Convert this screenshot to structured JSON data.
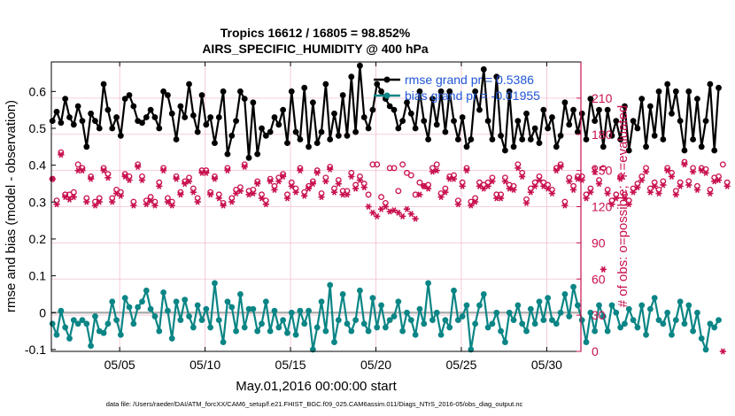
{
  "chart_data": {
    "type": "line",
    "title": [
      "Tropics 16612 / 16805 = 98.852%",
      "AIRS_SPECIFIC_HUMIDITY @ 400 hPa"
    ],
    "xlabel": "May.01,2016 00:00:00 start",
    "ylabel_left": "rmse and bias (model - observation)",
    "ylabel_right": "# of obs: o=possible; ∗=evaluated",
    "footnote": "data file: /Users/raeder/DAI/ATM_forcXX/CAM6_setup/f.e21.FHIST_BGC.f09_025.CAM6assim.011/Diags_NTrS_2016-05/obs_diag_output.nc",
    "xlim": [
      1,
      32
    ],
    "ylim_left": [
      -0.105,
      0.68
    ],
    "ylim_right": [
      0,
      240
    ],
    "x_ticks": [
      5,
      10,
      15,
      20,
      25,
      30
    ],
    "x_tick_labels": [
      "05/05",
      "05/10",
      "05/15",
      "05/20",
      "05/25",
      "05/30"
    ],
    "y_ticks_left": [
      -0.1,
      0,
      0.1,
      0.2,
      0.3,
      0.4,
      0.5,
      0.6
    ],
    "y_tick_labels_left": [
      "-0.1",
      "0",
      "0.1",
      "0.2",
      "0.3",
      "0.4",
      "0.5",
      "0.6"
    ],
    "y_ticks_right": [
      0,
      30,
      60,
      90,
      120,
      150,
      180,
      210
    ],
    "y_tick_labels_right": [
      "0",
      "30",
      "60",
      "90",
      "120",
      "150",
      "180",
      "210"
    ],
    "legend": {
      "placement": "top-right",
      "entries": [
        "rmse grand pr = 0.5386",
        "bias grand pr = -0.01955"
      ]
    },
    "colors": {
      "rmse": "#000000",
      "bias": "#0b8585",
      "obs": "#c8104e",
      "zero_line": "#b0b0b0",
      "legend_text": "#1f56d6",
      "grid": "#f2bfd0"
    },
    "x_step_days": 0.25,
    "series": [
      {
        "name": "rmse",
        "axis": "left",
        "values": [
          0.52,
          0.545,
          0.515,
          0.58,
          0.53,
          0.51,
          0.56,
          0.52,
          0.45,
          0.54,
          0.52,
          0.5,
          0.62,
          0.55,
          0.5,
          0.53,
          0.48,
          0.58,
          0.59,
          0.56,
          0.52,
          0.515,
          0.53,
          0.55,
          0.53,
          0.5,
          0.6,
          0.59,
          0.54,
          0.47,
          0.56,
          0.53,
          0.62,
          0.535,
          0.49,
          0.59,
          0.51,
          0.53,
          0.46,
          0.53,
          0.6,
          0.43,
          0.48,
          0.52,
          0.6,
          0.58,
          0.42,
          0.57,
          0.43,
          0.5,
          0.48,
          0.49,
          0.53,
          0.51,
          0.55,
          0.46,
          0.6,
          0.49,
          0.47,
          0.61,
          0.45,
          0.57,
          0.46,
          0.49,
          0.62,
          0.47,
          0.54,
          0.48,
          0.59,
          0.48,
          0.64,
          0.49,
          0.67,
          0.53,
          0.5,
          0.55,
          0.62,
          0.6,
          0.58,
          0.56,
          0.55,
          0.5,
          0.52,
          0.57,
          0.54,
          0.5,
          0.6,
          0.52,
          0.47,
          0.58,
          0.51,
          0.6,
          0.49,
          0.6,
          0.52,
          0.47,
          0.53,
          0.45,
          0.47,
          0.6,
          0.55,
          0.66,
          0.52,
          0.47,
          0.64,
          0.48,
          0.44,
          0.6,
          0.45,
          0.52,
          0.47,
          0.54,
          0.47,
          0.5,
          0.46,
          0.55,
          0.5,
          0.53,
          0.45,
          0.48,
          0.57,
          0.51,
          0.55,
          0.49,
          0.54,
          0.47,
          0.58,
          0.52,
          0.55,
          0.45,
          0.55,
          0.48,
          0.52,
          0.47,
          0.56,
          0.44,
          0.52,
          0.5,
          0.58,
          0.45,
          0.56,
          0.48,
          0.6,
          0.47,
          0.62,
          0.54,
          0.6,
          0.52,
          0.44,
          0.6,
          0.47,
          0.58,
          0.45,
          0.52,
          0.62,
          0.44,
          0.61
        ]
      },
      {
        "name": "bias",
        "axis": "left",
        "values": [
          -0.03,
          -0.06,
          0.005,
          -0.04,
          -0.07,
          -0.02,
          -0.03,
          -0.02,
          -0.03,
          -0.09,
          -0.01,
          -0.05,
          -0.055,
          -0.03,
          0.03,
          -0.02,
          -0.06,
          0.04,
          0.015,
          -0.03,
          0.015,
          0.03,
          0.06,
          0.01,
          -0.01,
          -0.05,
          0.055,
          0.005,
          -0.07,
          0.03,
          -0.02,
          0.035,
          -0.01,
          -0.04,
          0.02,
          -0.02,
          0.01,
          -0.04,
          0.08,
          -0.02,
          -0.08,
          0.03,
          0.015,
          -0.05,
          0.05,
          -0.04,
          0.01,
          0.01,
          -0.05,
          -0.03,
          0.03,
          -0.05,
          0.005,
          -0.04,
          -0.02,
          -0.055,
          0.0,
          -0.06,
          0.005,
          -0.03,
          0.005,
          -0.1,
          -0.04,
          0.03,
          -0.05,
          0.075,
          -0.08,
          -0.02,
          0.05,
          -0.03,
          -0.05,
          -0.02,
          0.06,
          -0.03,
          -0.05,
          0.04,
          -0.04,
          0.02,
          -0.04,
          -0.02,
          -0.01,
          0.03,
          -0.05,
          0.0,
          -0.02,
          -0.06,
          0.01,
          -0.03,
          0.08,
          -0.02,
          0.0,
          -0.06,
          -0.02,
          -0.04,
          0.06,
          -0.02,
          -0.01,
          0.02,
          -0.1,
          -0.03,
          0.02,
          0.05,
          -0.04,
          -0.03,
          0.0,
          -0.05,
          -0.08,
          0.0,
          -0.02,
          0.02,
          -0.03,
          -0.05,
          0.01,
          -0.03,
          0.03,
          -0.02,
          0.04,
          -0.02,
          -0.03,
          0.0,
          0.05,
          -0.01,
          0.07,
          0.02,
          -0.02,
          -0.08,
          0.0,
          -0.05,
          0.02,
          -0.01,
          -0.05,
          0.02,
          0.0,
          -0.04,
          -0.03,
          0.01,
          -0.02,
          -0.04,
          0.02,
          -0.06,
          0.01,
          0.04,
          -0.02,
          -0.03,
          0.0,
          -0.06,
          -0.02,
          0.03,
          -0.03,
          0.02,
          -0.05,
          0.0,
          -0.07,
          -0.1,
          -0.03,
          -0.04,
          -0.02
        ]
      },
      {
        "name": "obs_possible",
        "axis": "right",
        "values": [
          143,
          125,
          165,
          130,
          130,
          132,
          155,
          152,
          127,
          145,
          124,
          127,
          152,
          147,
          127,
          134,
          132,
          147,
          145,
          124,
          155,
          145,
          125,
          128,
          124,
          140,
          152,
          127,
          124,
          145,
          132,
          141,
          144,
          135,
          127,
          150,
          150,
          132,
          145,
          130,
          123,
          152,
          127,
          134,
          136,
          155,
          133,
          134,
          141,
          130,
          125,
          143,
          137,
          144,
          147,
          130,
          140,
          135,
          152,
          132,
          137,
          141,
          150,
          131,
          144,
          153,
          135,
          142,
          133,
          133,
          148,
          138,
          145,
          139,
          130,
          155,
          155,
          128,
          123,
          152,
          152,
          133,
          155,
          148,
          146,
          130,
          140,
          137,
          138,
          152,
          155,
          131,
          135,
          145,
          146,
          125,
          140,
          152,
          124,
          127,
          140,
          138,
          140,
          144,
          130,
          130,
          144,
          138,
          137,
          155,
          148,
          126,
          135,
          140,
          145,
          140,
          138,
          134,
          152,
          155,
          124,
          144,
          137,
          145,
          145,
          130,
          135,
          152,
          142,
          152,
          134,
          125,
          130,
          145,
          130,
          125,
          135,
          139,
          145,
          152,
          135,
          140,
          134,
          141,
          152,
          148,
          133,
          140,
          157,
          141,
          152,
          137,
          152,
          151,
          134,
          144,
          145,
          155,
          140
        ]
      },
      {
        "name": "obs_evaluated",
        "axis": "right",
        "values": [
          143,
          122,
          163,
          128,
          126,
          128,
          150,
          150,
          124,
          143,
          121,
          124,
          150,
          144,
          124,
          131,
          129,
          145,
          142,
          121,
          153,
          142,
          122,
          125,
          121,
          137,
          150,
          124,
          121,
          143,
          130,
          139,
          141,
          132,
          124,
          148,
          148,
          130,
          143,
          127,
          121,
          150,
          124,
          131,
          133,
          153,
          130,
          131,
          139,
          127,
          122,
          141,
          134,
          141,
          145,
          127,
          137,
          132,
          150,
          129,
          135,
          139,
          148,
          128,
          141,
          151,
          132,
          139,
          130,
          130,
          145,
          135,
          142,
          136,
          120,
          115,
          112,
          118,
          120,
          116,
          117,
          115,
          112,
          118,
          114,
          110,
          130,
          137,
          135,
          149,
          150,
          128,
          132,
          143,
          143,
          122,
          137,
          150,
          121,
          124,
          137,
          135,
          137,
          141,
          127,
          127,
          141,
          135,
          134,
          152,
          145,
          123,
          132,
          137,
          142,
          137,
          135,
          131,
          150,
          153,
          121,
          141,
          134,
          143,
          142,
          127,
          132,
          149,
          139,
          68,
          131,
          122,
          127,
          143,
          127,
          122,
          132,
          136,
          142,
          149,
          132,
          137,
          131,
          138,
          150,
          145,
          130,
          137,
          155,
          138,
          149,
          134,
          150,
          148,
          131,
          141,
          142,
          0,
          137
        ]
      }
    ]
  }
}
